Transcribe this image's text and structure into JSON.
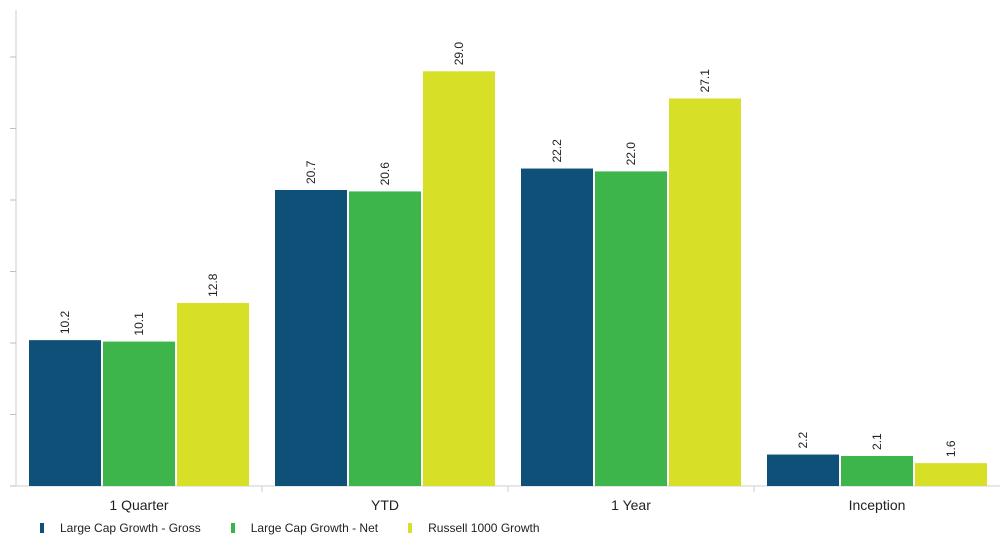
{
  "chart_data": {
    "type": "bar",
    "categories": [
      "1 Quarter",
      "YTD",
      "1 Year",
      "Inception"
    ],
    "series": [
      {
        "name": "Large Cap Growth - Gross",
        "color": "#0f5078",
        "values": [
          10.2,
          20.7,
          22.2,
          2.2
        ]
      },
      {
        "name": "Large Cap Growth - Net",
        "color": "#3db54a",
        "values": [
          10.1,
          20.6,
          22.0,
          2.1
        ]
      },
      {
        "name": "Russell 1000 Growth",
        "color": "#d8df27",
        "values": [
          12.8,
          29.0,
          27.1,
          1.6
        ]
      }
    ],
    "ylim": [
      0,
      33
    ],
    "y_ticks": [
      0,
      5,
      10,
      15,
      20,
      25,
      30
    ],
    "y_tick_labels_shown": false,
    "grid": false,
    "legend_position": "bottom-left",
    "data_labels": true,
    "title": "",
    "xlabel": "",
    "ylabel": ""
  }
}
